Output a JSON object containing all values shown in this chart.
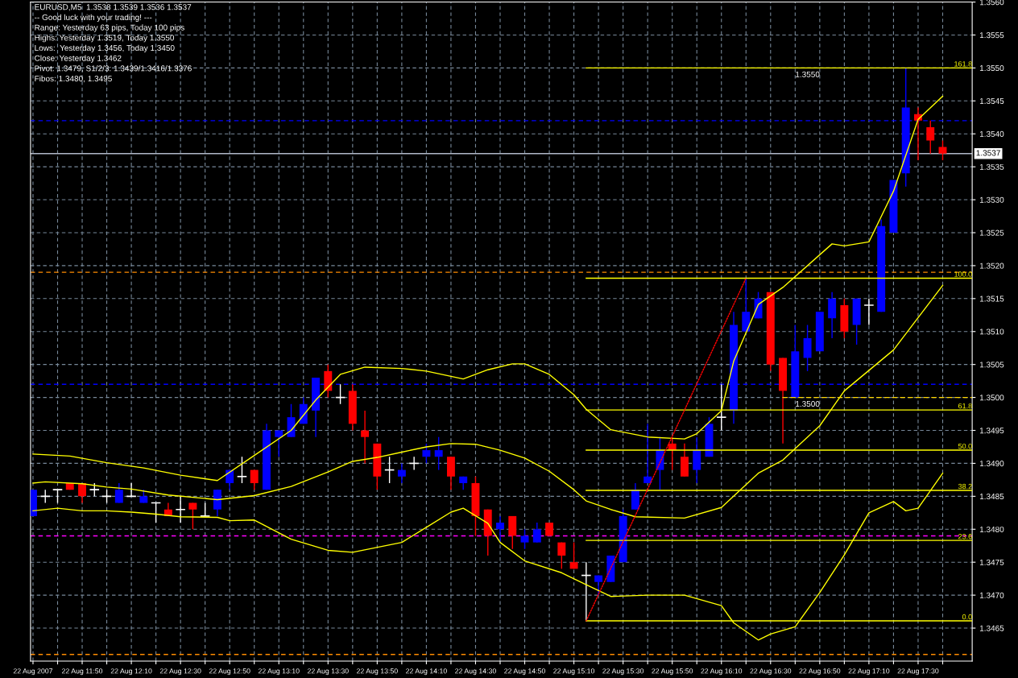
{
  "chart_data": {
    "type": "candlestick",
    "title": "EURUSD,M5  1.3538 1.3539 1.3536 1.3537",
    "annotations": [
      "-- Good luck with your trading! ---",
      "Range: Yesterday 63 pips, Today 100 pips",
      "Highs: Yesterday 1.3519, Today 1.3550",
      "Lows:  Yesterday 1.3456, Today 1.3450",
      "Close: Yesterday 1.3462",
      "Pivot: 1.3479, S1/2/3: 1.3439/1.3416/1.3376",
      "Fibos: 1.3480, 1.3495",
      {
        "text": "1.3550",
        "x": "2007-08-22T16:40",
        "y": 1.355
      },
      {
        "text": "1.3500",
        "x": "2007-08-22T16:40",
        "y": 1.35
      }
    ],
    "x": [
      "2007-08-22T11:30",
      "2007-08-22T11:35",
      "2007-08-22T11:40",
      "2007-08-22T11:45",
      "2007-08-22T11:50",
      "2007-08-22T11:55",
      "2007-08-22T12:00",
      "2007-08-22T12:05",
      "2007-08-22T12:10",
      "2007-08-22T12:15",
      "2007-08-22T12:20",
      "2007-08-22T12:25",
      "2007-08-22T12:30",
      "2007-08-22T12:35",
      "2007-08-22T12:40",
      "2007-08-22T12:45",
      "2007-08-22T12:50",
      "2007-08-22T12:55",
      "2007-08-22T13:00",
      "2007-08-22T13:05",
      "2007-08-22T13:10",
      "2007-08-22T13:15",
      "2007-08-22T13:20",
      "2007-08-22T13:25",
      "2007-08-22T13:30",
      "2007-08-22T13:35",
      "2007-08-22T13:40",
      "2007-08-22T13:45",
      "2007-08-22T13:50",
      "2007-08-22T13:55",
      "2007-08-22T14:00",
      "2007-08-22T14:05",
      "2007-08-22T14:10",
      "2007-08-22T14:15",
      "2007-08-22T14:20",
      "2007-08-22T14:25",
      "2007-08-22T14:30",
      "2007-08-22T14:35",
      "2007-08-22T14:40",
      "2007-08-22T14:45",
      "2007-08-22T14:50",
      "2007-08-22T14:55",
      "2007-08-22T15:00",
      "2007-08-22T15:05",
      "2007-08-22T15:10",
      "2007-08-22T15:15",
      "2007-08-22T15:20",
      "2007-08-22T15:25",
      "2007-08-22T15:30",
      "2007-08-22T15:35",
      "2007-08-22T15:40",
      "2007-08-22T15:45",
      "2007-08-22T15:50",
      "2007-08-22T15:55",
      "2007-08-22T16:00",
      "2007-08-22T16:05",
      "2007-08-22T16:10",
      "2007-08-22T16:15",
      "2007-08-22T16:20",
      "2007-08-22T16:25",
      "2007-08-22T16:30",
      "2007-08-22T16:35",
      "2007-08-22T16:40",
      "2007-08-22T16:45",
      "2007-08-22T16:50",
      "2007-08-22T16:55",
      "2007-08-22T17:00",
      "2007-08-22T17:05",
      "2007-08-22T17:10",
      "2007-08-22T17:15",
      "2007-08-22T17:20",
      "2007-08-22T17:25",
      "2007-08-22T17:30",
      "2007-08-22T17:35",
      "2007-08-22T17:40"
    ],
    "ohlc": [
      [
        1.3482,
        1.3486,
        1.3482,
        1.3486
      ],
      [
        1.3485,
        1.3486,
        1.3484,
        1.3485
      ],
      [
        1.3486,
        1.3486,
        1.3484,
        1.3486
      ],
      [
        1.3487,
        1.3487,
        1.3486,
        1.3486
      ],
      [
        1.3487,
        1.3487,
        1.3484,
        1.3485
      ],
      [
        1.3486,
        1.3487,
        1.3485,
        1.3486
      ],
      [
        1.3485,
        1.3486,
        1.3484,
        1.3485
      ],
      [
        1.3484,
        1.3487,
        1.3484,
        1.3486
      ],
      [
        1.3485,
        1.3487,
        1.3485,
        1.3485
      ],
      [
        1.3484,
        1.3486,
        1.3484,
        1.3485
      ],
      [
        1.3484,
        1.3484,
        1.3481,
        1.3484
      ],
      [
        1.3483,
        1.3484,
        1.3482,
        1.3482
      ],
      [
        1.3483,
        1.3485,
        1.3481,
        1.3483
      ],
      [
        1.3484,
        1.3484,
        1.348,
        1.3483
      ],
      [
        1.3482,
        1.3484,
        1.3482,
        1.3482
      ],
      [
        1.3483,
        1.3486,
        1.3482,
        1.3486
      ],
      [
        1.3487,
        1.3489,
        1.3486,
        1.3489
      ],
      [
        1.3488,
        1.3491,
        1.3487,
        1.3488
      ],
      [
        1.3489,
        1.3489,
        1.3486,
        1.3487
      ],
      [
        1.3486,
        1.3496,
        1.3486,
        1.3495
      ],
      [
        1.3494,
        1.3495,
        1.3491,
        1.3495
      ],
      [
        1.3494,
        1.3499,
        1.3494,
        1.3497
      ],
      [
        1.3496,
        1.35,
        1.3496,
        1.3499
      ],
      [
        1.3498,
        1.3503,
        1.3494,
        1.3503
      ],
      [
        1.3504,
        1.3505,
        1.35,
        1.3501
      ],
      [
        1.35,
        1.3502,
        1.3499,
        1.35
      ],
      [
        1.3501,
        1.3502,
        1.3495,
        1.3496
      ],
      [
        1.3495,
        1.3498,
        1.349,
        1.3494
      ],
      [
        1.3493,
        1.3493,
        1.3486,
        1.3488
      ],
      [
        1.3489,
        1.3491,
        1.3487,
        1.3489
      ],
      [
        1.3488,
        1.349,
        1.3487,
        1.3489
      ],
      [
        1.349,
        1.3491,
        1.3489,
        1.349
      ],
      [
        1.3491,
        1.3493,
        1.349,
        1.3492
      ],
      [
        1.3491,
        1.3494,
        1.3489,
        1.3492
      ],
      [
        1.3491,
        1.3491,
        1.3486,
        1.3488
      ],
      [
        1.3487,
        1.3488,
        1.3486,
        1.3488
      ],
      [
        1.3487,
        1.3488,
        1.3479,
        1.3482
      ],
      [
        1.3483,
        1.3483,
        1.3476,
        1.3479
      ],
      [
        1.348,
        1.3482,
        1.3478,
        1.3481
      ],
      [
        1.3482,
        1.3482,
        1.3477,
        1.3479
      ],
      [
        1.3478,
        1.348,
        1.3477,
        1.3479
      ],
      [
        1.3478,
        1.3481,
        1.3478,
        1.348
      ],
      [
        1.3481,
        1.3481,
        1.3479,
        1.3479
      ],
      [
        1.3478,
        1.3478,
        1.3474,
        1.3476
      ],
      [
        1.3475,
        1.3478,
        1.3474,
        1.3474
      ],
      [
        1.3473,
        1.3475,
        1.3466,
        1.3473
      ],
      [
        1.3472,
        1.3473,
        1.347,
        1.3473
      ],
      [
        1.3472,
        1.3476,
        1.3472,
        1.3476
      ],
      [
        1.3475,
        1.3483,
        1.3475,
        1.3482
      ],
      [
        1.3483,
        1.3487,
        1.3483,
        1.3486
      ],
      [
        1.3487,
        1.3496,
        1.3487,
        1.3488
      ],
      [
        1.3489,
        1.3494,
        1.3486,
        1.3492
      ],
      [
        1.3493,
        1.3494,
        1.3489,
        1.3492
      ],
      [
        1.3491,
        1.3493,
        1.3488,
        1.3488
      ],
      [
        1.3489,
        1.3494,
        1.3487,
        1.3492
      ],
      [
        1.3491,
        1.3497,
        1.3491,
        1.3496
      ],
      [
        1.3497,
        1.3502,
        1.3495,
        1.3497
      ],
      [
        1.3498,
        1.3513,
        1.3496,
        1.3511
      ],
      [
        1.351,
        1.3518,
        1.351,
        1.3513
      ],
      [
        1.3512,
        1.3516,
        1.3512,
        1.3515
      ],
      [
        1.3516,
        1.3516,
        1.3504,
        1.3505
      ],
      [
        1.3506,
        1.3506,
        1.3493,
        1.3501
      ],
      [
        1.35,
        1.3511,
        1.35,
        1.3507
      ],
      [
        1.3506,
        1.3511,
        1.3504,
        1.3509
      ],
      [
        1.3507,
        1.3513,
        1.3507,
        1.3513
      ],
      [
        1.3512,
        1.3516,
        1.3509,
        1.3515
      ],
      [
        1.3514,
        1.3515,
        1.3509,
        1.351
      ],
      [
        1.3511,
        1.3515,
        1.3508,
        1.3515
      ],
      [
        1.3514,
        1.3515,
        1.3511,
        1.3514
      ],
      [
        1.3513,
        1.3527,
        1.3513,
        1.3526
      ],
      [
        1.3525,
        1.3533,
        1.3525,
        1.3533
      ],
      [
        1.3534,
        1.355,
        1.3532,
        1.3544
      ],
      [
        1.3543,
        1.3544,
        1.3536,
        1.3542
      ],
      [
        1.3541,
        1.3542,
        1.3537,
        1.3539
      ],
      [
        1.3538,
        1.3539,
        1.3536,
        1.3537
      ]
    ],
    "colors": [
      "#0000ff",
      "#ffffff",
      "#ffffff",
      "#ff0000",
      "#ff0000",
      "#ffffff",
      "#ffffff",
      "#0000ff",
      "#ffffff",
      "#0000ff",
      "#ffffff",
      "#ff0000",
      "#ffffff",
      "#ff0000",
      "#ffffff",
      "#0000ff",
      "#0000ff",
      "#ffffff",
      "#ff0000",
      "#0000ff",
      "#0000ff",
      "#0000ff",
      "#0000ff",
      "#0000ff",
      "#ff0000",
      "#ffffff",
      "#ff0000",
      "#ff0000",
      "#ff0000",
      "#ffffff",
      "#0000ff",
      "#ffffff",
      "#0000ff",
      "#0000ff",
      "#ff0000",
      "#0000ff",
      "#ff0000",
      "#ff0000",
      "#0000ff",
      "#ff0000",
      "#0000ff",
      "#0000ff",
      "#ff0000",
      "#ff0000",
      "#ff0000",
      "#ffffff",
      "#0000ff",
      "#0000ff",
      "#0000ff",
      "#0000ff",
      "#0000ff",
      "#0000ff",
      "#ff0000",
      "#ff0000",
      "#0000ff",
      "#0000ff",
      "#ffffff",
      "#0000ff",
      "#0000ff",
      "#0000ff",
      "#ff0000",
      "#ff0000",
      "#0000ff",
      "#0000ff",
      "#0000ff",
      "#0000ff",
      "#ff0000",
      "#0000ff",
      "#ffffff",
      "#0000ff",
      "#0000ff",
      "#0000ff",
      "#ff0000",
      "#ff0000",
      "#ff0000"
    ],
    "series": [
      {
        "type": "line",
        "color": "#ffff00",
        "x": [
          "2007-08-22T11:30",
          "2007-08-22T11:45",
          "2007-08-22T12:00",
          "2007-08-22T12:15",
          "2007-08-22T12:30",
          "2007-08-22T12:45",
          "2007-08-22T13:00",
          "2007-08-22T13:15",
          "2007-08-22T13:25",
          "2007-08-22T13:35",
          "2007-08-22T13:45",
          "2007-08-22T14:00",
          "2007-08-22T14:10",
          "2007-08-22T14:25",
          "2007-08-22T14:35",
          "2007-08-22T14:45",
          "2007-08-22T14:50",
          "2007-08-22T15:00",
          "2007-08-22T15:10",
          "2007-08-22T15:15",
          "2007-08-22T15:25",
          "2007-08-22T15:40",
          "2007-08-22T15:55",
          "2007-08-22T16:00",
          "2007-08-22T16:10",
          "2007-08-22T16:15",
          "2007-08-22T16:25",
          "2007-08-22T16:35",
          "2007-08-22T16:55",
          "2007-08-22T17:00",
          "2007-08-22T17:10",
          "2007-08-22T17:20",
          "2007-08-22T17:30",
          "2007-08-22T17:40"
        ],
        "values": [
          1.34914,
          1.34911,
          1.34901,
          1.34893,
          1.34882,
          1.34874,
          1.34912,
          1.3495,
          1.34996,
          1.35035,
          1.35046,
          1.35044,
          1.3504,
          1.35028,
          1.35042,
          1.35051,
          1.35051,
          1.35035,
          1.35004,
          1.34982,
          1.34951,
          1.3494,
          1.34937,
          1.34945,
          1.3498,
          1.35055,
          1.35141,
          1.35167,
          1.35233,
          1.3523,
          1.35236,
          1.35313,
          1.35422,
          1.35457
        ]
      },
      {
        "type": "line",
        "color": "#ffff00",
        "x": [
          "2007-08-22T11:30",
          "2007-08-22T11:35",
          "2007-08-22T11:50",
          "2007-08-22T12:00",
          "2007-08-22T12:10",
          "2007-08-22T12:25",
          "2007-08-22T12:45",
          "2007-08-22T13:00",
          "2007-08-22T13:15",
          "2007-08-22T13:30",
          "2007-08-22T13:40",
          "2007-08-22T13:50",
          "2007-08-22T14:00",
          "2007-08-22T14:10",
          "2007-08-22T14:20",
          "2007-08-22T14:30",
          "2007-08-22T14:40",
          "2007-08-22T14:50",
          "2007-08-22T15:00",
          "2007-08-22T15:10",
          "2007-08-22T15:15",
          "2007-08-22T15:25",
          "2007-08-22T15:35",
          "2007-08-22T15:55",
          "2007-08-22T16:10",
          "2007-08-22T16:25",
          "2007-08-22T16:35",
          "2007-08-22T16:50",
          "2007-08-22T17:00",
          "2007-08-22T17:20",
          "2007-08-22T17:40"
        ],
        "values": [
          1.3487,
          1.34872,
          1.34869,
          1.34864,
          1.34861,
          1.34852,
          1.34845,
          1.34851,
          1.34865,
          1.34887,
          1.34903,
          1.34909,
          1.34917,
          1.34925,
          1.3493,
          1.34929,
          1.3492,
          1.34908,
          1.34888,
          1.3486,
          1.34843,
          1.3483,
          1.34819,
          1.34817,
          1.34833,
          1.34885,
          1.34905,
          1.34957,
          1.3501,
          1.35072,
          1.3517
        ]
      },
      {
        "type": "line",
        "color": "#ffff00",
        "x": [
          "2007-08-22T11:30",
          "2007-08-22T11:40",
          "2007-08-22T11:50",
          "2007-08-22T12:00",
          "2007-08-22T12:10",
          "2007-08-22T12:20",
          "2007-08-22T12:30",
          "2007-08-22T12:45",
          "2007-08-22T12:50",
          "2007-08-22T13:00",
          "2007-08-22T13:15",
          "2007-08-22T13:30",
          "2007-08-22T13:40",
          "2007-08-22T14:00",
          "2007-08-22T14:10",
          "2007-08-22T14:20",
          "2007-08-22T14:25",
          "2007-08-22T14:35",
          "2007-08-22T14:40",
          "2007-08-22T14:50",
          "2007-08-22T15:05",
          "2007-08-22T15:15",
          "2007-08-22T15:25",
          "2007-08-22T15:40",
          "2007-08-22T15:55",
          "2007-08-22T16:10",
          "2007-08-22T16:15",
          "2007-08-22T16:25",
          "2007-08-22T16:30",
          "2007-08-22T16:40",
          "2007-08-22T16:50",
          "2007-08-22T17:00",
          "2007-08-22T17:10",
          "2007-08-22T17:20",
          "2007-08-22T17:25",
          "2007-08-22T17:30",
          "2007-08-22T17:40"
        ],
        "values": [
          1.34828,
          1.34832,
          1.34828,
          1.34828,
          1.34826,
          1.34823,
          1.34819,
          1.34818,
          1.34813,
          1.34814,
          1.34785,
          1.34768,
          1.34765,
          1.3478,
          1.34803,
          1.34826,
          1.34832,
          1.34809,
          1.3478,
          1.34752,
          1.34734,
          1.34716,
          1.34698,
          1.347,
          1.347,
          1.34684,
          1.34658,
          1.34632,
          1.34641,
          1.34652,
          1.34704,
          1.34761,
          1.34825,
          1.34842,
          1.34828,
          1.34832,
          1.34885
        ]
      },
      {
        "type": "line",
        "name": "161.8",
        "color": "#ffff00",
        "x": [
          "2007-08-22T15:15",
          "2007-08-22T17:52"
        ],
        "values": [
          1.355,
          1.355
        ]
      },
      {
        "type": "line",
        "name": "100.0",
        "color": "#ffff00",
        "x": [
          "2007-08-22T15:15",
          "2007-08-22T17:52"
        ],
        "values": [
          1.35181,
          1.35181
        ]
      },
      {
        "type": "line",
        "name": "61.8",
        "color": "#ffff00",
        "x": [
          "2007-08-22T15:15",
          "2007-08-22T17:52"
        ],
        "values": [
          1.34981,
          1.34981
        ]
      },
      {
        "type": "line",
        "name": "50.0",
        "color": "#ffff00",
        "x": [
          "2007-08-22T15:15",
          "2007-08-22T17:52"
        ],
        "values": [
          1.3492,
          1.3492
        ]
      },
      {
        "type": "line",
        "name": "38.2",
        "color": "#ffff00",
        "x": [
          "2007-08-22T15:15",
          "2007-08-22T17:52"
        ],
        "values": [
          1.34859,
          1.34859
        ]
      },
      {
        "type": "line",
        "name": "23.6",
        "color": "#ffff00",
        "x": [
          "2007-08-22T15:15",
          "2007-08-22T17:52"
        ],
        "values": [
          1.34783,
          1.34783
        ]
      },
      {
        "type": "line",
        "name": "0.0",
        "color": "#ffff00",
        "x": [
          "2007-08-22T15:15",
          "2007-08-22T17:52"
        ],
        "values": [
          1.34661,
          1.34661
        ]
      },
      {
        "type": "line",
        "color": "#ff0000",
        "line_style": "dotted",
        "x": [
          "2007-08-22T15:15",
          "2007-08-22T16:20"
        ],
        "values": [
          1.34661,
          1.35181
        ]
      },
      {
        "type": "line",
        "color": "#ffd700",
        "line_style": "dashed",
        "x": [
          "2007-08-22T16:35",
          "2007-08-22T17:52"
        ],
        "values": [
          1.35,
          1.35
        ]
      }
    ],
    "ref_lines": [
      {
        "axis": "y",
        "value": 1.3537,
        "label": "1.3537",
        "color": "#b0b8c8",
        "line_style": "solid"
      },
      {
        "axis": "y",
        "value": 1.3519,
        "color": "#ff8c00",
        "line_style": "dashed"
      },
      {
        "axis": "y",
        "value": 1.3542,
        "color": "#0000ff",
        "line_style": "dashed"
      },
      {
        "axis": "y",
        "value": 1.3502,
        "color": "#0000ff",
        "line_style": "dashed"
      },
      {
        "axis": "y",
        "value": 1.3479,
        "color": "#ff00ff",
        "line_style": "dashed"
      },
      {
        "axis": "y",
        "value": 1.3461,
        "color": "#ff8c00",
        "line_style": "dashed"
      }
    ],
    "xlim": [
      "2007-08-22T11:29",
      "2007-08-22T17:52"
    ],
    "xticks": [
      {
        "value": "2007-08-22T11:30",
        "label": "22 Aug 2007"
      },
      {
        "value": "2007-08-22T11:40",
        "label": null
      },
      {
        "value": "2007-08-22T11:50",
        "label": "22 Aug 11:50"
      },
      {
        "value": "2007-08-22T12:00",
        "label": null
      },
      {
        "value": "2007-08-22T12:10",
        "label": "22 Aug 12:10"
      },
      {
        "value": "2007-08-22T12:20",
        "label": null
      },
      {
        "value": "2007-08-22T12:30",
        "label": "22 Aug 12:30"
      },
      {
        "value": "2007-08-22T12:40",
        "label": null
      },
      {
        "value": "2007-08-22T12:50",
        "label": "22 Aug 12:50"
      },
      {
        "value": "2007-08-22T13:00",
        "label": null
      },
      {
        "value": "2007-08-22T13:10",
        "label": "22 Aug 13:10"
      },
      {
        "value": "2007-08-22T13:20",
        "label": null
      },
      {
        "value": "2007-08-22T13:30",
        "label": "22 Aug 13:30"
      },
      {
        "value": "2007-08-22T13:40",
        "label": null
      },
      {
        "value": "2007-08-22T13:50",
        "label": "22 Aug 13:50"
      },
      {
        "value": "2007-08-22T14:00",
        "label": null
      },
      {
        "value": "2007-08-22T14:10",
        "label": "22 Aug 14:10"
      },
      {
        "value": "2007-08-22T14:20",
        "label": null
      },
      {
        "value": "2007-08-22T14:30",
        "label": "22 Aug 14:30"
      },
      {
        "value": "2007-08-22T14:40",
        "label": null
      },
      {
        "value": "2007-08-22T14:50",
        "label": "22 Aug 14:50"
      },
      {
        "value": "2007-08-22T15:00",
        "label": null
      },
      {
        "value": "2007-08-22T15:10",
        "label": "22 Aug 15:10"
      },
      {
        "value": "2007-08-22T15:20",
        "label": null
      },
      {
        "value": "2007-08-22T15:30",
        "label": "22 Aug 15:30"
      },
      {
        "value": "2007-08-22T15:40",
        "label": null
      },
      {
        "value": "2007-08-22T15:50",
        "label": "22 Aug 15:50"
      },
      {
        "value": "2007-08-22T16:00",
        "label": null
      },
      {
        "value": "2007-08-22T16:10",
        "label": "22 Aug 16:10"
      },
      {
        "value": "2007-08-22T16:20",
        "label": null
      },
      {
        "value": "2007-08-22T16:30",
        "label": "22 Aug 16:30"
      },
      {
        "value": "2007-08-22T16:40",
        "label": null
      },
      {
        "value": "2007-08-22T16:50",
        "label": "22 Aug 16:50"
      },
      {
        "value": "2007-08-22T17:00",
        "label": null
      },
      {
        "value": "2007-08-22T17:10",
        "label": "22 Aug 17:10"
      },
      {
        "value": "2007-08-22T17:20",
        "label": null
      },
      {
        "value": "2007-08-22T17:30",
        "label": "22 Aug 17:30"
      },
      {
        "value": "2007-08-22T17:40",
        "label": null
      }
    ],
    "ylim": [
      1.346,
      1.356
    ],
    "yticks": [
      {
        "value": 1.3465,
        "label": "1.3465"
      },
      {
        "value": 1.347,
        "label": "1.3470"
      },
      {
        "value": 1.3475,
        "label": "1.3475"
      },
      {
        "value": 1.348,
        "label": "1.3480"
      },
      {
        "value": 1.3485,
        "label": "1.3485"
      },
      {
        "value": 1.349,
        "label": "1.3490"
      },
      {
        "value": 1.3495,
        "label": "1.3495"
      },
      {
        "value": 1.35,
        "label": "1.3500"
      },
      {
        "value": 1.3505,
        "label": "1.3505"
      },
      {
        "value": 1.351,
        "label": "1.3510"
      },
      {
        "value": 1.3515,
        "label": "1.3515"
      },
      {
        "value": 1.352,
        "label": "1.3520"
      },
      {
        "value": 1.3525,
        "label": "1.3525"
      },
      {
        "value": 1.353,
        "label": "1.3530"
      },
      {
        "value": 1.3535,
        "label": "1.3535"
      },
      {
        "value": 1.354,
        "label": "1.3540"
      },
      {
        "value": 1.3545,
        "label": "1.3545"
      },
      {
        "value": 1.355,
        "label": "1.3550"
      },
      {
        "value": 1.3555,
        "label": "1.3555"
      },
      {
        "value": 1.356,
        "label": "1.3560"
      }
    ],
    "grid": true
  }
}
